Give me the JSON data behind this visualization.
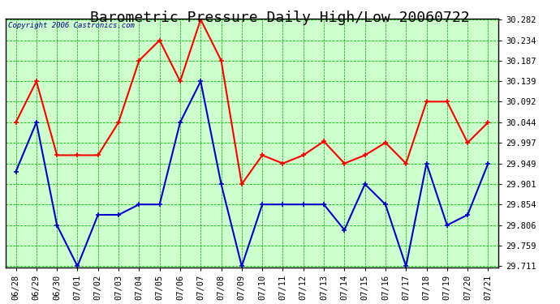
{
  "title": "Barometric Pressure Daily High/Low 20060722",
  "copyright": "Copyright 2006 Castronics.com",
  "background_color": "#ccffcc",
  "outer_bg": "#ffffff",
  "x_labels": [
    "06/28",
    "06/29",
    "06/30",
    "07/01",
    "07/02",
    "07/03",
    "07/04",
    "07/05",
    "07/06",
    "07/07",
    "07/08",
    "07/09",
    "07/10",
    "07/11",
    "07/12",
    "07/13",
    "07/14",
    "07/15",
    "07/16",
    "07/17",
    "07/18",
    "07/19",
    "07/20",
    "07/21"
  ],
  "high_values": [
    30.044,
    30.139,
    29.968,
    29.968,
    29.968,
    30.044,
    30.187,
    30.234,
    30.139,
    30.282,
    30.187,
    29.901,
    29.968,
    29.949,
    29.968,
    30.0,
    29.949,
    29.968,
    29.997,
    29.949,
    30.092,
    30.092,
    29.997,
    30.044
  ],
  "low_values": [
    29.93,
    30.044,
    29.806,
    29.711,
    29.83,
    29.83,
    29.854,
    29.854,
    30.044,
    30.139,
    29.901,
    29.711,
    29.854,
    29.854,
    29.854,
    29.854,
    29.795,
    29.901,
    29.854,
    29.711,
    29.949,
    29.806,
    29.83,
    29.949
  ],
  "high_color": "#ff0000",
  "low_color": "#0000cc",
  "marker": "+",
  "marker_size": 5,
  "line_width": 1.5,
  "ylim_min": 29.711,
  "ylim_max": 30.282,
  "y_ticks": [
    29.711,
    29.759,
    29.806,
    29.854,
    29.901,
    29.949,
    29.997,
    30.044,
    30.092,
    30.139,
    30.187,
    30.234,
    30.282
  ],
  "hgrid_color": "#00bb00",
  "hgrid_linestyle": "--",
  "hgrid_linewidth": 0.6,
  "vgrid_color": "#009900",
  "vgrid_linestyle": "--",
  "vgrid_linewidth": 0.5,
  "title_fontsize": 13,
  "tick_fontsize": 7.5,
  "copyright_fontsize": 6.5
}
